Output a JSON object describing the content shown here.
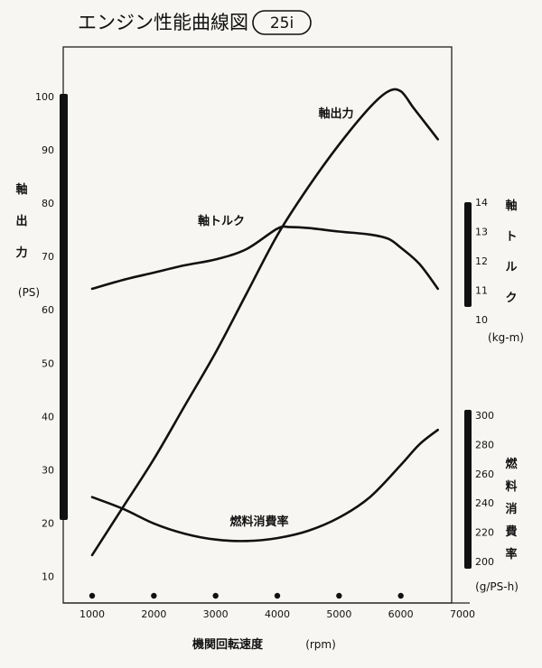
{
  "chart_data": {
    "type": "line",
    "title": "エンジン性能曲線図",
    "title_badge": "25i",
    "xlabel": "機関回転速度",
    "xunit": "(rpm)",
    "xlim": [
      1000,
      7000
    ],
    "x_ticks": [
      "1000",
      "2000",
      "3000",
      "4000",
      "5000",
      "6000",
      "7000"
    ],
    "marker_rpms": [
      1000,
      2000,
      3000,
      4000,
      5000,
      6000
    ],
    "axes": {
      "power": {
        "label_chars": [
          "軸",
          "出",
          "力"
        ],
        "unit": "(PS)",
        "lim": [
          5,
          110
        ],
        "ticks": [
          "10",
          "20",
          "30",
          "40",
          "50",
          "60",
          "70",
          "80",
          "90",
          "100"
        ]
      },
      "torque": {
        "label_chars": [
          "軸",
          "ト",
          "ル",
          "ク"
        ],
        "unit": "(kg-m)",
        "lim": [
          10,
          14
        ],
        "ticks": [
          "10",
          "11",
          "12",
          "13",
          "14"
        ]
      },
      "fuel": {
        "label_chars": [
          "燃",
          "料",
          "消",
          "費",
          "率"
        ],
        "unit": "(g/PS-h)",
        "lim": [
          200,
          300
        ],
        "ticks": [
          "200",
          "220",
          "240",
          "260",
          "280",
          "300"
        ]
      }
    },
    "series": [
      {
        "name": "軸出力",
        "axis": "power",
        "x": [
          1000,
          1500,
          2000,
          2500,
          3000,
          3500,
          4000,
          4500,
          5000,
          5500,
          5800,
          6000,
          6200,
          6400,
          6600
        ],
        "y": [
          14,
          23,
          32,
          42,
          52,
          63,
          74,
          83,
          91,
          98,
          101,
          101,
          98,
          95,
          92
        ]
      },
      {
        "name": "軸トルク",
        "axis": "torque",
        "x": [
          1000,
          1500,
          2000,
          2500,
          3000,
          3500,
          4000,
          4200,
          4500,
          5000,
          5500,
          5800,
          6000,
          6300,
          6600
        ],
        "y": [
          11.05,
          11.35,
          11.6,
          11.85,
          12.05,
          12.4,
          13.1,
          13.15,
          13.12,
          13.0,
          12.9,
          12.75,
          12.45,
          11.9,
          11.05
        ]
      },
      {
        "name": "燃料消費率",
        "axis": "fuel",
        "x": [
          1000,
          1500,
          2000,
          2500,
          3000,
          3500,
          4000,
          4500,
          5000,
          5500,
          6000,
          6300,
          6600
        ],
        "y": [
          244,
          236,
          226,
          219,
          215,
          214,
          216,
          221,
          230,
          244,
          266,
          280,
          290
        ]
      }
    ]
  }
}
